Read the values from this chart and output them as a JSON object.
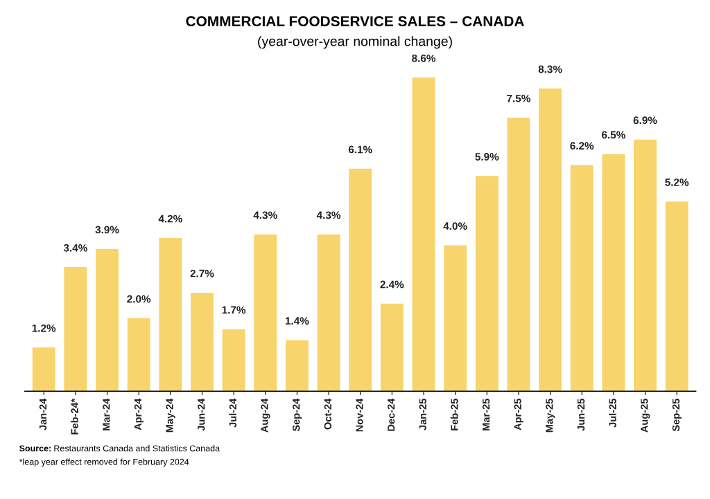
{
  "chart_data": {
    "type": "bar",
    "title": "COMMERCIAL FOODSERVICE SALES – CANADA",
    "subtitle": "(year-over-year nominal change)",
    "categories": [
      "Jan-24",
      "Feb-24*",
      "Mar-24",
      "Apr-24",
      "May-24",
      "Jun-24",
      "Jul-24",
      "Aug-24",
      "Sep-24",
      "Oct-24",
      "Nov-24",
      "Dec-24",
      "Jan-25",
      "Feb-25",
      "Mar-25",
      "Apr-25",
      "May-25",
      "Jun-25",
      "Jul-25",
      "Aug-25",
      "Sep-25"
    ],
    "values": [
      1.2,
      3.4,
      3.9,
      2.0,
      4.2,
      2.7,
      1.7,
      4.3,
      1.4,
      4.3,
      6.1,
      2.4,
      8.6,
      4.0,
      5.9,
      7.5,
      8.3,
      6.2,
      6.5,
      6.9,
      5.2
    ],
    "value_labels": [
      "1.2%",
      "3.4%",
      "3.9%",
      "2.0%",
      "4.2%",
      "2.7%",
      "1.7%",
      "4.3%",
      "1.4%",
      "4.3%",
      "6.1%",
      "2.4%",
      "8.6%",
      "4.0%",
      "5.9%",
      "7.5%",
      "8.3%",
      "6.2%",
      "6.5%",
      "6.9%",
      "5.2%"
    ],
    "color": "#f7d46c",
    "grid": false,
    "legend": false,
    "tick_labels": "x",
    "annotations": [
      "Source: Restaurants Canada and Statistics Canada",
      "*leap year effect removed for February 2024"
    ]
  }
}
